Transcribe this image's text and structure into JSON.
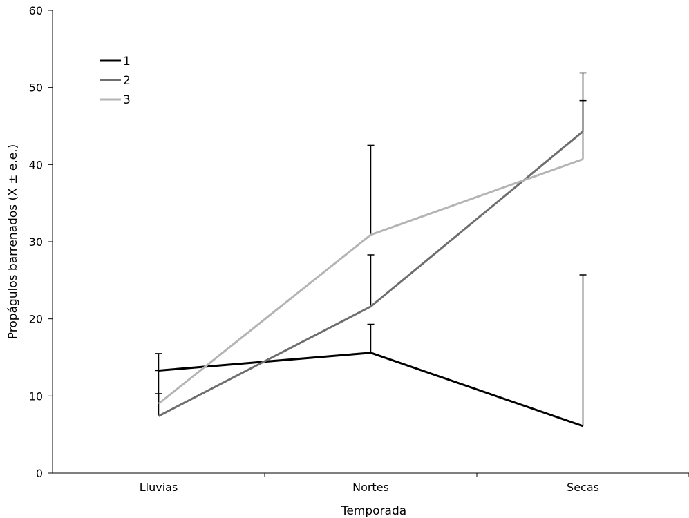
{
  "chart_data": {
    "type": "line",
    "categories": [
      "Lluvias",
      "Nortes",
      "Secas"
    ],
    "xlabel": "Temporada",
    "ylabel": "Propágulos barrenados (X ± e.e.)",
    "ylim": [
      0,
      60
    ],
    "yticks": [
      "0",
      "10",
      "20",
      "30",
      "40",
      "50",
      "60"
    ],
    "grid": false,
    "legend_position": "top-left",
    "series": [
      {
        "name": "1",
        "color": "#000000",
        "values": [
          13.3,
          15.6,
          6.1
        ],
        "error": [
          2.2,
          3.7,
          19.6
        ]
      },
      {
        "name": "2",
        "color": "#6e6e6e",
        "values": [
          7.4,
          21.6,
          44.3
        ],
        "error": [
          2.9,
          6.7,
          7.6
        ]
      },
      {
        "name": "3",
        "color": "#b4b4b4",
        "values": [
          9.0,
          30.9,
          40.7
        ],
        "error": [
          4.3,
          11.6,
          7.6
        ]
      }
    ]
  }
}
